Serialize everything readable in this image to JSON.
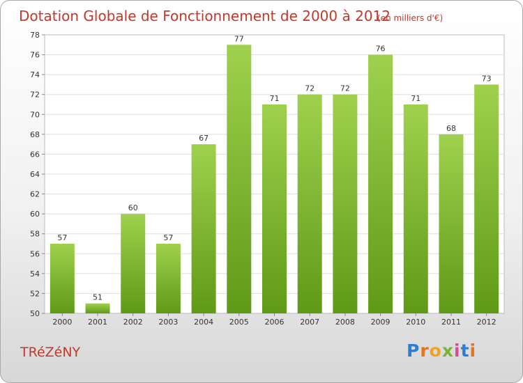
{
  "chart_data": {
    "type": "bar",
    "title": "Dotation Globale de Fonctionnement de 2000 à 2012",
    "unit": "(en milliers d'€)",
    "categories": [
      "2000",
      "2001",
      "2002",
      "2003",
      "2004",
      "2005",
      "2006",
      "2007",
      "2008",
      "2009",
      "2010",
      "2011",
      "2012"
    ],
    "values": [
      57,
      51,
      60,
      57,
      67,
      77,
      71,
      72,
      72,
      76,
      71,
      68,
      73
    ],
    "ylim": [
      50,
      78
    ],
    "yticks": [
      50,
      52,
      54,
      56,
      58,
      60,
      62,
      64,
      66,
      68,
      70,
      72,
      74,
      76,
      78
    ],
    "grid": true,
    "bar_color": "#7ab82e"
  },
  "commune": "TRéZéNY",
  "logo": "Proxiti"
}
